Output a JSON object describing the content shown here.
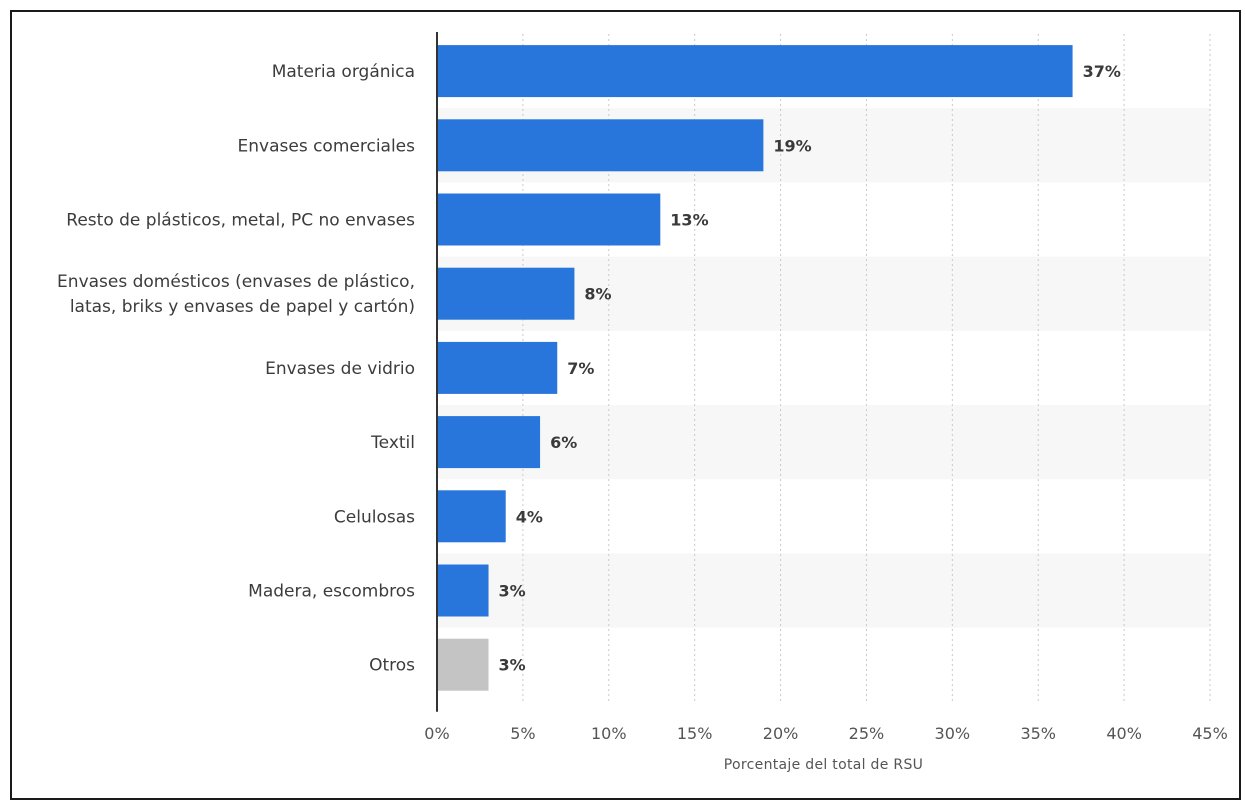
{
  "chart_data": {
    "type": "bar",
    "orientation": "horizontal",
    "categories": [
      "Materia orgánica",
      "Envases comerciales",
      "Resto de plásticos, metal, PC no envases",
      "Envases domésticos (envases de plástico, latas, briks y envases de papel y cartón)",
      "Envases de vidrio",
      "Textil",
      "Celulosas",
      "Madera, escombros",
      "Otros"
    ],
    "category_lines": [
      [
        "Materia orgánica"
      ],
      [
        "Envases comerciales"
      ],
      [
        "Resto de plásticos, metal, PC no envases"
      ],
      [
        "Envases domésticos (envases de plástico,",
        "latas, briks y envases de papel y cartón)"
      ],
      [
        "Envases de vidrio"
      ],
      [
        "Textil"
      ],
      [
        "Celulosas"
      ],
      [
        "Madera, escombros"
      ],
      [
        "Otros"
      ]
    ],
    "values": [
      37,
      19,
      13,
      8,
      7,
      6,
      4,
      3,
      3
    ],
    "value_labels": [
      "37%",
      "19%",
      "13%",
      "8%",
      "7%",
      "6%",
      "4%",
      "3%",
      "3%"
    ],
    "bar_colors": [
      "#2875dc",
      "#2875dc",
      "#2875dc",
      "#2875dc",
      "#2875dc",
      "#2875dc",
      "#2875dc",
      "#2875dc",
      "#c4c4c4"
    ],
    "xlim": [
      0,
      45
    ],
    "xticks": [
      0,
      5,
      10,
      15,
      20,
      25,
      30,
      35,
      40,
      45
    ],
    "xtick_labels": [
      "0%",
      "5%",
      "10%",
      "15%",
      "20%",
      "25%",
      "30%",
      "35%",
      "40%",
      "45%"
    ],
    "xlabel": "Porcentaje del total de RSU",
    "ylabel": "",
    "title": "",
    "grid": "vertical dotted",
    "band_color": "#f7f7f7"
  }
}
